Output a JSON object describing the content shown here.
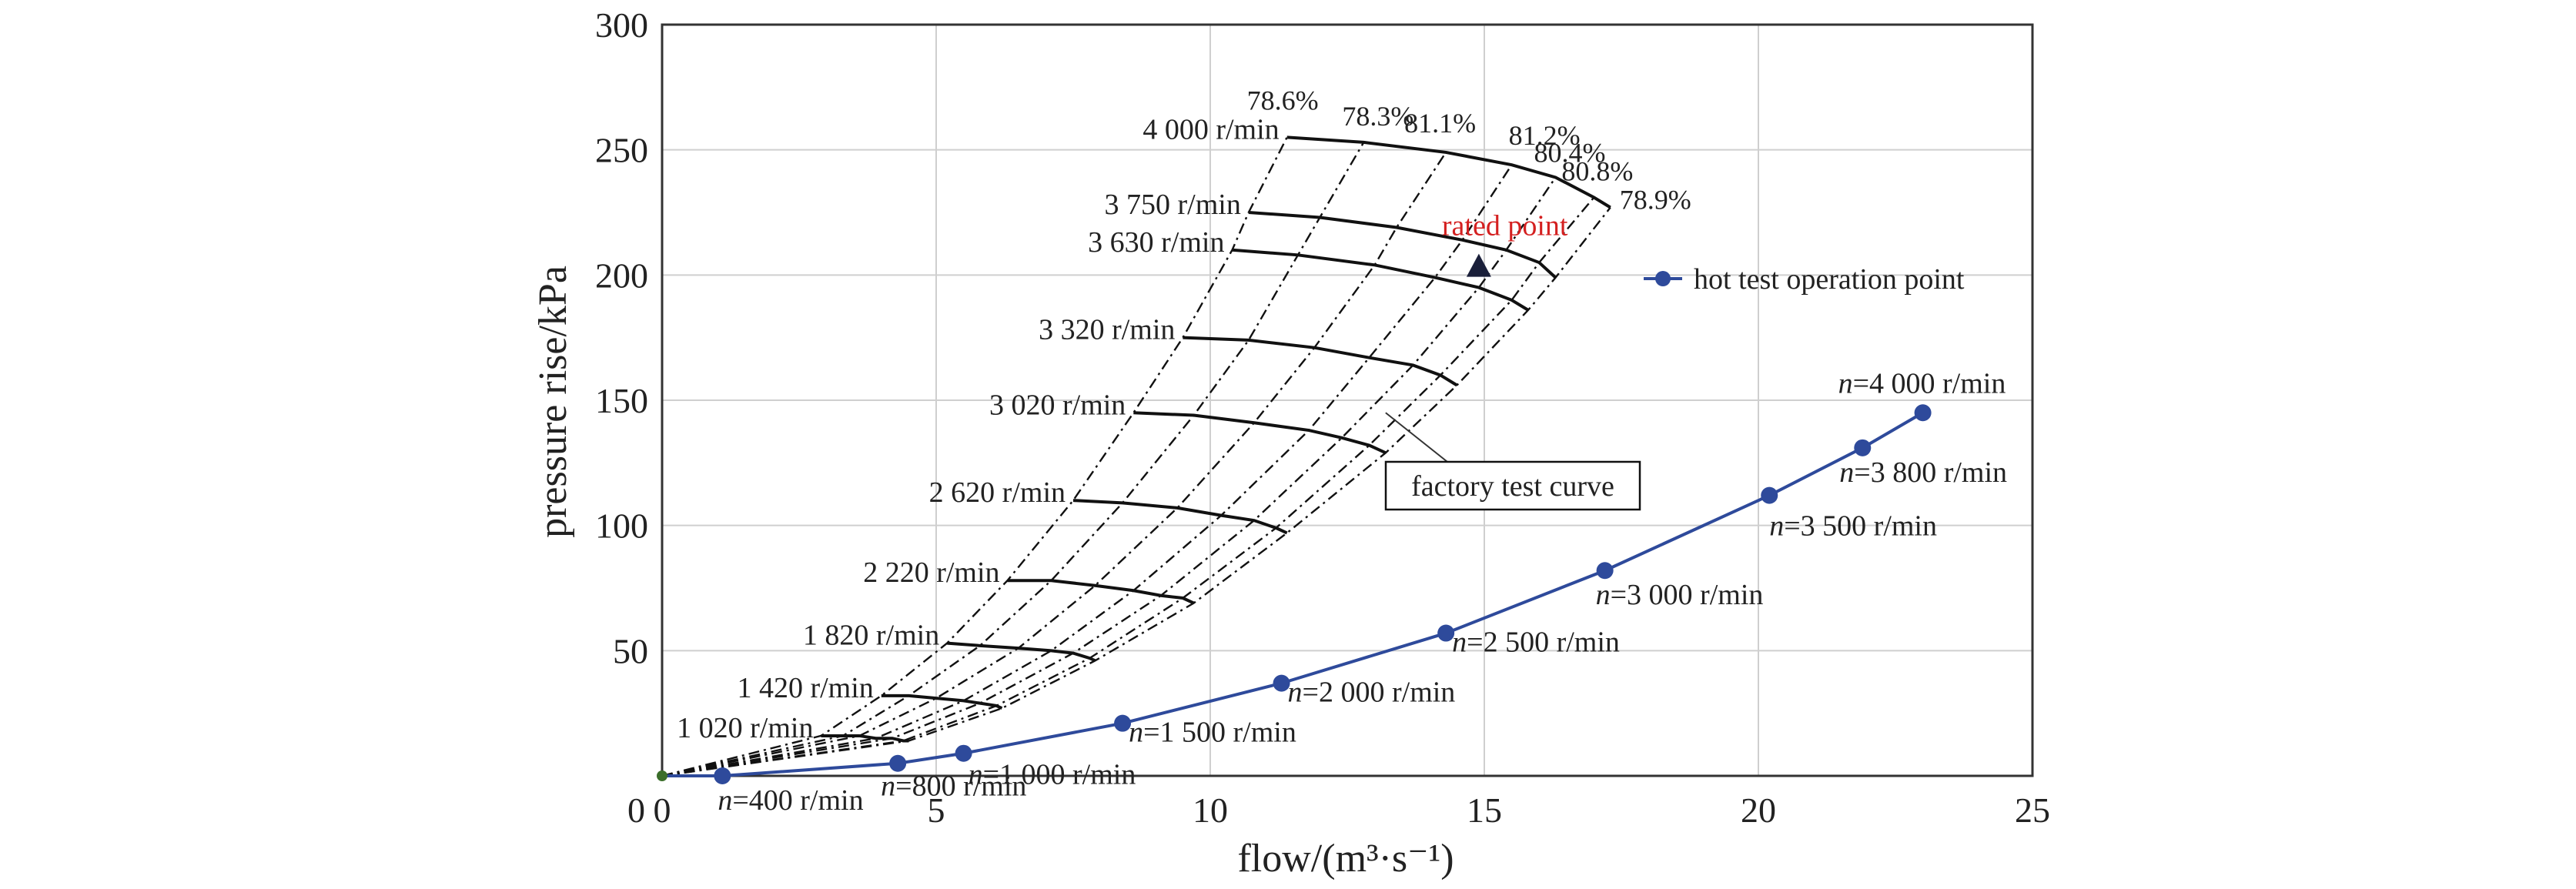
{
  "chart_data": {
    "type": "line",
    "xlabel": "flow/(m³·s⁻¹)",
    "ylabel": "pressure rise/kPa",
    "xlim": [
      0,
      25
    ],
    "ylim": [
      0,
      300
    ],
    "x_ticks": [
      "0",
      "5",
      "10",
      "15",
      "20",
      "25"
    ],
    "y_ticks": [
      "50",
      "100",
      "150",
      "200",
      "250",
      "300"
    ],
    "grid": true,
    "legend": {
      "position": "top-right",
      "entries": [
        "hot test operation point"
      ]
    },
    "series": [
      {
        "name": "hot test operation point",
        "color": "#2E4A9B",
        "points": [
          {
            "x": 0.0,
            "y": 0,
            "label": ""
          },
          {
            "x": 1.1,
            "y": 0,
            "label": "n=400 r/min",
            "n": "n",
            "rest": "=400 r/min"
          },
          {
            "x": 4.3,
            "y": 5,
            "label": "n=800 r/min",
            "n": "n",
            "rest": "=800 r/min"
          },
          {
            "x": 5.5,
            "y": 9,
            "label": "n=1 000 r/min",
            "n": "n",
            "rest": "=1 000 r/min"
          },
          {
            "x": 8.4,
            "y": 21,
            "label": "n=1 500 r/min",
            "n": "n",
            "rest": "=1 500 r/min"
          },
          {
            "x": 11.3,
            "y": 37,
            "label": "n=2 000 r/min",
            "n": "n",
            "rest": "=2 000 r/min"
          },
          {
            "x": 14.3,
            "y": 57,
            "label": "n=2 500 r/min",
            "n": "n",
            "rest": "=2 500 r/min"
          },
          {
            "x": 17.2,
            "y": 82,
            "label": "n=3 000 r/min",
            "n": "n",
            "rest": "=3 000 r/min"
          },
          {
            "x": 20.2,
            "y": 112,
            "label": "n=3 500 r/min",
            "n": "n",
            "rest": "=3 500 r/min"
          },
          {
            "x": 21.9,
            "y": 131,
            "label": "n=3 800 r/min",
            "n": "n",
            "rest": "=3 800 r/min"
          },
          {
            "x": 23.0,
            "y": 145,
            "label": "n=4 000 r/min",
            "n": "n",
            "rest": "=4 000 r/min"
          }
        ]
      }
    ],
    "factory_test_curves": [
      {
        "speed": "4 000 r/min",
        "points": [
          [
            11.4,
            255
          ],
          [
            12.8,
            253
          ],
          [
            14.3,
            249
          ],
          [
            15.5,
            244
          ],
          [
            16.3,
            239
          ],
          [
            17.0,
            231
          ],
          [
            17.3,
            227
          ]
        ]
      },
      {
        "speed": "3 750 r/min",
        "points": [
          [
            10.7,
            225
          ],
          [
            12.0,
            223
          ],
          [
            13.4,
            219
          ],
          [
            14.6,
            214
          ],
          [
            15.4,
            210
          ],
          [
            16.0,
            205
          ],
          [
            16.3,
            199
          ]
        ]
      },
      {
        "speed": "3 630 r/min",
        "points": [
          [
            10.4,
            210
          ],
          [
            11.6,
            208
          ],
          [
            13.0,
            204
          ],
          [
            14.1,
            199
          ],
          [
            14.9,
            195
          ],
          [
            15.5,
            190
          ],
          [
            15.8,
            186
          ]
        ]
      },
      {
        "speed": "3 320 r/min",
        "points": [
          [
            9.5,
            175
          ],
          [
            10.7,
            174
          ],
          [
            11.9,
            171
          ],
          [
            12.9,
            167
          ],
          [
            13.7,
            164
          ],
          [
            14.2,
            160
          ],
          [
            14.5,
            156
          ]
        ]
      },
      {
        "speed": "3 020 r/min",
        "points": [
          [
            8.6,
            145
          ],
          [
            9.7,
            144
          ],
          [
            10.8,
            141
          ],
          [
            11.8,
            138
          ],
          [
            12.4,
            135
          ],
          [
            12.9,
            132
          ],
          [
            13.2,
            129
          ]
        ]
      },
      {
        "speed": "2 620 r/min",
        "points": [
          [
            7.5,
            110
          ],
          [
            8.4,
            109
          ],
          [
            9.4,
            107
          ],
          [
            10.2,
            104
          ],
          [
            10.8,
            102
          ],
          [
            11.2,
            99
          ],
          [
            11.4,
            97
          ]
        ]
      },
      {
        "speed": "2 220 r/min",
        "points": [
          [
            6.3,
            78
          ],
          [
            7.1,
            78
          ],
          [
            7.9,
            76
          ],
          [
            8.6,
            74
          ],
          [
            9.1,
            72
          ],
          [
            9.5,
            71
          ],
          [
            9.7,
            69
          ]
        ]
      },
      {
        "speed": "1 820 r/min",
        "points": [
          [
            5.2,
            53
          ],
          [
            5.8,
            52
          ],
          [
            6.5,
            51
          ],
          [
            7.1,
            50
          ],
          [
            7.5,
            49
          ],
          [
            7.8,
            47
          ],
          [
            7.9,
            46
          ]
        ]
      },
      {
        "speed": "1 420 r/min",
        "points": [
          [
            4.0,
            32
          ],
          [
            4.5,
            32
          ],
          [
            5.0,
            31
          ],
          [
            5.5,
            30
          ],
          [
            5.8,
            29
          ],
          [
            6.1,
            28
          ],
          [
            6.2,
            27
          ]
        ]
      },
      {
        "speed": "1 020 r/min",
        "points": [
          [
            2.9,
            16
          ],
          [
            3.3,
            16
          ],
          [
            3.6,
            16
          ],
          [
            3.9,
            15
          ],
          [
            4.2,
            15
          ],
          [
            4.4,
            14
          ],
          [
            4.5,
            14
          ]
        ]
      }
    ],
    "efficiency_labels": [
      "78.6%",
      "78.3%",
      "81.1%",
      "81.2%",
      "80.4%",
      "80.8%",
      "78.9%"
    ],
    "annotations": {
      "rated_point": {
        "label": "rated point",
        "x": 14.9,
        "y": 203,
        "color": "#D42020"
      },
      "factory_test_curve": "factory test curve"
    }
  }
}
